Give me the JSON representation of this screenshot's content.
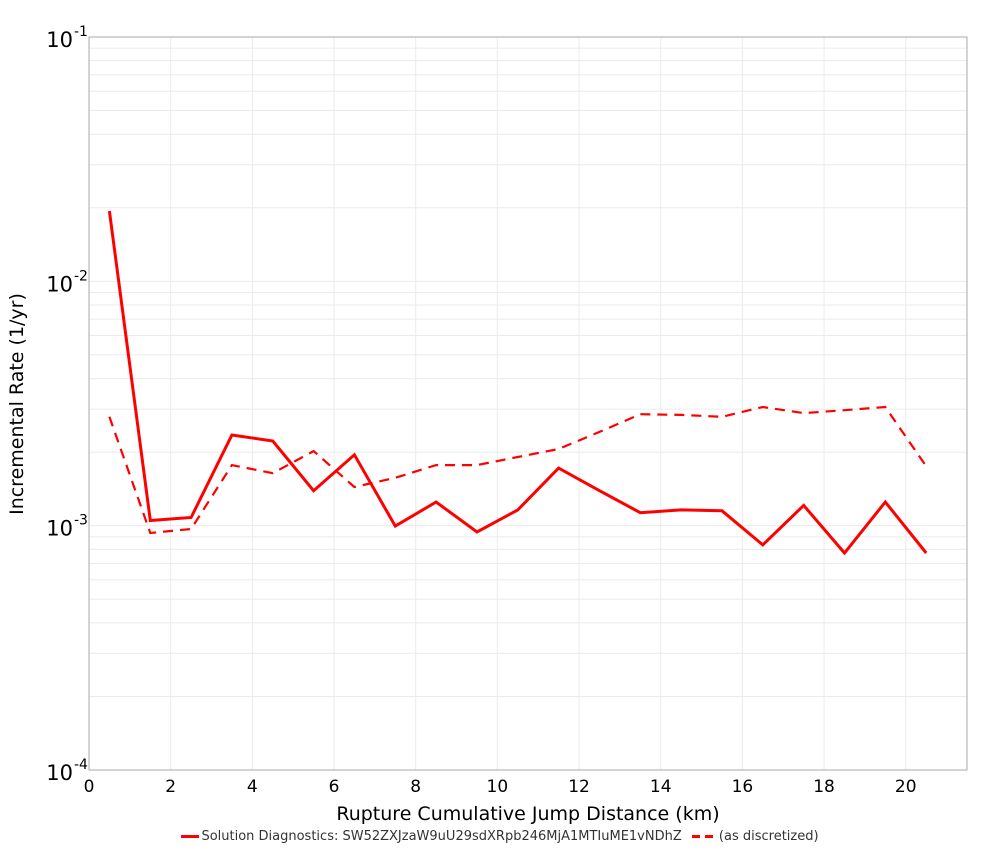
{
  "chart_data": {
    "type": "line",
    "title": "",
    "xlabel": "Rupture Cumulative Jump Distance (km)",
    "ylabel": "Incremental Rate (1/yr)",
    "xlim": [
      0,
      21.5
    ],
    "ylim": [
      0.0001,
      0.1
    ],
    "yscale": "log",
    "grid": true,
    "legend_position": "bottom",
    "x_ticks": [
      0,
      2,
      4,
      6,
      8,
      10,
      12,
      14,
      16,
      18,
      20
    ],
    "x_tick_labels": [
      "0",
      "2",
      "4",
      "6",
      "8",
      "10",
      "12",
      "14",
      "16",
      "18",
      "20"
    ],
    "y_ticks": [
      0.1,
      0.01,
      0.001,
      0.0001
    ],
    "y_tick_labels": [
      {
        "base": "10",
        "exp": "-1"
      },
      {
        "base": "10",
        "exp": "-2"
      },
      {
        "base": "10",
        "exp": "-3"
      },
      {
        "base": "10",
        "exp": "-4"
      }
    ],
    "x": [
      0.5,
      1.5,
      2.5,
      3.5,
      4.5,
      5.5,
      6.5,
      7.5,
      8.5,
      9.5,
      10.5,
      11.5,
      12.5,
      13.5,
      14.5,
      15.5,
      16.5,
      17.5,
      18.5,
      19.5,
      20.5
    ],
    "series": [
      {
        "name": "Solution Diagnostics: SW52ZXJzaW9uU29sdXRpb246MjA1MTIuME1vNDhZ",
        "color": "#ff0000",
        "style": "solid",
        "values": [
          0.0194,
          0.00105,
          0.00108,
          0.00235,
          0.00222,
          0.00139,
          0.00195,
          0.000996,
          0.00125,
          0.000942,
          0.00116,
          0.00172,
          0.00139,
          0.00113,
          0.00116,
          0.00115,
          0.000834,
          0.00121,
          0.000773,
          0.00125,
          0.000773
        ]
      },
      {
        "name": "(as discretized)",
        "color": "#ff0000",
        "style": "dashed",
        "values": [
          0.00279,
          0.000933,
          0.000969,
          0.00177,
          0.00164,
          0.00202,
          0.00144,
          0.00157,
          0.00177,
          0.00177,
          0.00191,
          0.00206,
          0.00242,
          0.00286,
          0.00284,
          0.00279,
          0.00306,
          0.00289,
          0.00297,
          0.00306,
          0.00175
        ]
      }
    ]
  },
  "legend": {
    "items": [
      {
        "label": "Solution Diagnostics: SW52ZXJzaW9uU29sdXRpb246MjA1MTIuME1vNDhZ",
        "style": "solid"
      },
      {
        "label": "(as discretized)",
        "style": "dashed"
      }
    ]
  },
  "colors": {
    "series": "#ff0000",
    "grid": "#ebebeb",
    "axis": "#a0a0a0"
  }
}
